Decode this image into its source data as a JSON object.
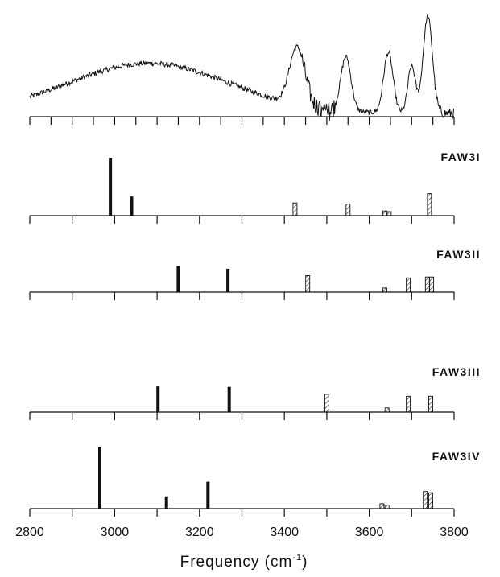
{
  "chart_data": [
    {
      "type": "line",
      "title": "",
      "description": "experimental spectrum",
      "xlim": [
        2800,
        3800
      ],
      "peaks": [
        {
          "x": 3080,
          "height": 0.48,
          "width": 190
        },
        {
          "x": 3430,
          "height": 0.55,
          "width": 18
        },
        {
          "x": 3545,
          "height": 0.52,
          "width": 12
        },
        {
          "x": 3645,
          "height": 0.58,
          "width": 11
        },
        {
          "x": 3700,
          "height": 0.45,
          "width": 9
        },
        {
          "x": 3738,
          "height": 0.93,
          "width": 11
        }
      ]
    },
    {
      "type": "bar",
      "title": "FAW3I",
      "xlim": [
        2800,
        3800
      ],
      "series": [
        {
          "style": "solid",
          "x": [
            2990,
            3040
          ],
          "values": [
            1.0,
            0.33
          ]
        },
        {
          "style": "hatched",
          "x": [
            3425,
            3550,
            3637,
            3647,
            3742
          ],
          "values": [
            0.22,
            0.2,
            0.08,
            0.07,
            0.38
          ]
        }
      ]
    },
    {
      "type": "bar",
      "title": "FAW3II",
      "xlim": [
        2800,
        3800
      ],
      "series": [
        {
          "style": "solid",
          "x": [
            3150,
            3267
          ],
          "values": [
            0.57,
            0.51
          ]
        },
        {
          "style": "hatched",
          "x": [
            3455,
            3637,
            3692,
            3737,
            3747
          ],
          "values": [
            0.36,
            0.09,
            0.31,
            0.33,
            0.33
          ]
        }
      ]
    },
    {
      "type": "bar",
      "title": "FAW3III",
      "xlim": [
        2800,
        3800
      ],
      "series": [
        {
          "style": "solid",
          "x": [
            3102,
            3270
          ],
          "values": [
            0.55,
            0.54
          ]
        },
        {
          "style": "hatched",
          "x": [
            3500,
            3642,
            3692,
            3745
          ],
          "values": [
            0.38,
            0.09,
            0.34,
            0.34
          ]
        }
      ]
    },
    {
      "type": "bar",
      "title": "FAW3IV",
      "xlim": [
        2800,
        3800
      ],
      "series": [
        {
          "style": "solid",
          "x": [
            2965,
            3122,
            3220
          ],
          "values": [
            1.0,
            0.2,
            0.44
          ]
        },
        {
          "style": "hatched",
          "x": [
            3630,
            3642,
            3732,
            3745
          ],
          "values": [
            0.08,
            0.06,
            0.28,
            0.26
          ]
        }
      ]
    }
  ],
  "x_axis": {
    "label": "Frequency (cm",
    "label_sup": "-1",
    "label_close": ")",
    "ticks": [
      "2800",
      "3000",
      "3200",
      "3400",
      "3600",
      "3800"
    ]
  },
  "colors": {
    "ink": "#111111",
    "hatch": "#333333"
  }
}
